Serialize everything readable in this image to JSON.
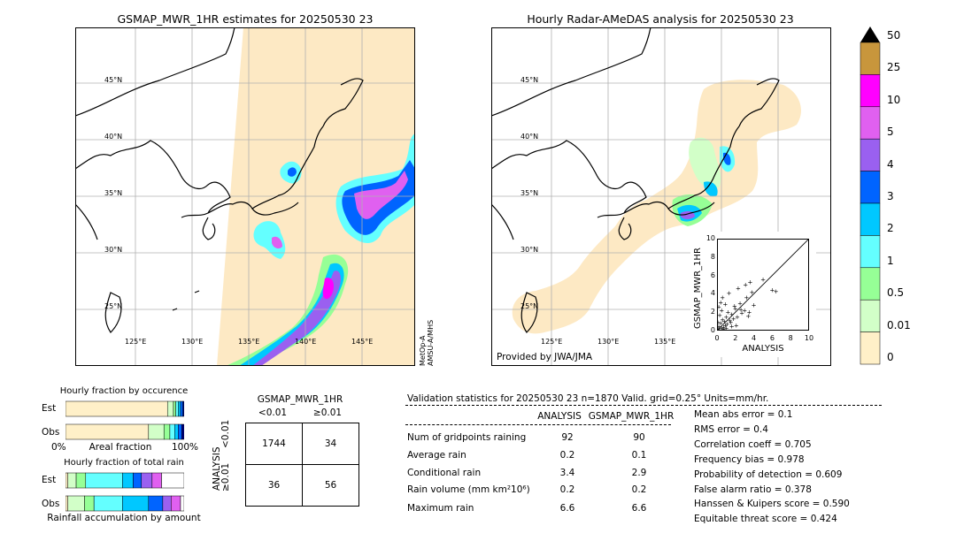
{
  "left_map": {
    "title": "GSMAP_MWR_1HR estimates for 20250530 23",
    "lat_labels": [
      "45°N",
      "40°N",
      "35°N",
      "30°N",
      "25°N"
    ],
    "lon_labels": [
      "125°E",
      "130°E",
      "135°E",
      "140°E",
      "145°E"
    ],
    "sensor_note": "MetOp-A\nAMSU-A/MHS",
    "sensor_line1": "MetOp-A",
    "sensor_line2": "AMSU-A/MHS"
  },
  "right_map": {
    "title": "Hourly Radar-AMeDAS analysis for 20250530 23",
    "lat_labels": [
      "45°N",
      "40°N",
      "35°N",
      "30°N",
      "25°N"
    ],
    "lon_labels": [
      "125°E",
      "130°E",
      "135°E"
    ],
    "credit": "Provided by JWA/JMA"
  },
  "colorbar": {
    "labels": [
      "50",
      "25",
      "10",
      "5",
      "4",
      "3",
      "2",
      "1",
      "0.5",
      "0.01",
      "0"
    ],
    "colors": [
      "#c8963c",
      "#ff00ff",
      "#e060f0",
      "#9a60f0",
      "#0064ff",
      "#00c8ff",
      "#64ffff",
      "#96ff96",
      "#d2ffc8",
      "#fff0c8"
    ]
  },
  "chart_data": [
    {
      "type": "scatter",
      "xlabel": "ANALYSIS",
      "ylabel": "GSMAP_MWR_1HR",
      "xlim": [
        0,
        10
      ],
      "ylim": [
        0,
        10
      ],
      "x_ticks": [
        "0",
        "2",
        "4",
        "6",
        "8",
        "10"
      ],
      "y_ticks": [
        "0",
        "2",
        "4",
        "6",
        "8",
        "10"
      ],
      "points": [
        [
          0.1,
          0.2
        ],
        [
          0.2,
          0.5
        ],
        [
          0.3,
          0.1
        ],
        [
          0.4,
          0.8
        ],
        [
          0.5,
          0.3
        ],
        [
          0.6,
          1.2
        ],
        [
          0.7,
          0.4
        ],
        [
          0.8,
          1.0
        ],
        [
          0.9,
          0.6
        ],
        [
          1.0,
          1.5
        ],
        [
          1.1,
          0.7
        ],
        [
          1.2,
          2.0
        ],
        [
          1.4,
          1.1
        ],
        [
          1.5,
          0.9
        ],
        [
          1.6,
          1.8
        ],
        [
          1.8,
          1.3
        ],
        [
          2.0,
          2.4
        ],
        [
          2.2,
          1.5
        ],
        [
          2.5,
          3.0
        ],
        [
          2.7,
          1.9
        ],
        [
          3.0,
          2.2
        ],
        [
          3.2,
          3.6
        ],
        [
          3.5,
          2.0
        ],
        [
          3.8,
          4.2
        ],
        [
          4.0,
          2.8
        ],
        [
          0.2,
          2.6
        ],
        [
          0.4,
          3.1
        ],
        [
          0.6,
          3.6
        ],
        [
          1.3,
          4.1
        ],
        [
          2.3,
          4.6
        ],
        [
          3.1,
          5.0
        ],
        [
          3.6,
          5.3
        ],
        [
          5.0,
          5.6
        ],
        [
          6.0,
          4.4
        ],
        [
          6.4,
          4.3
        ],
        [
          1.9,
          2.7
        ],
        [
          2.6,
          2.3
        ],
        [
          0.3,
          1.7
        ],
        [
          0.1,
          0.9
        ],
        [
          0.5,
          2.2
        ],
        [
          0.7,
          0.2
        ],
        [
          1.0,
          0.3
        ],
        [
          1.6,
          0.5
        ],
        [
          2.1,
          0.6
        ],
        [
          0.9,
          2.9
        ],
        [
          3.4,
          1.6
        ]
      ]
    },
    {
      "type": "bar",
      "title": "Hourly fraction by occurence",
      "categories": [
        "Est",
        "Obs"
      ],
      "xlabel": "Areal fraction",
      "x_tick_labels": [
        "0%",
        "100%"
      ],
      "series": [
        {
          "values": [
            0.86,
            0.7
          ]
        },
        {
          "values": [
            0.05,
            0.13
          ]
        },
        {
          "values": [
            0.02,
            0.05
          ]
        },
        {
          "values": [
            0.02,
            0.04
          ]
        },
        {
          "values": [
            0.02,
            0.03
          ]
        },
        {
          "values": [
            0.02,
            0.03
          ]
        },
        {
          "values": [
            0.01,
            0.02
          ]
        }
      ],
      "colors": [
        "#fff0c8",
        "#d2ffc8",
        "#96ff96",
        "#64ffff",
        "#00c8ff",
        "#0064ff",
        "#000080"
      ]
    },
    {
      "type": "bar",
      "title": "Hourly fraction of total rain",
      "categories": [
        "Est",
        "Obs"
      ],
      "xlabel": "Rainfall accumulation by amount",
      "series": [
        {
          "values": [
            0.02,
            0.02
          ]
        },
        {
          "values": [
            0.07,
            0.14
          ]
        },
        {
          "values": [
            0.08,
            0.08
          ]
        },
        {
          "values": [
            0.31,
            0.24
          ]
        },
        {
          "values": [
            0.09,
            0.22
          ]
        },
        {
          "values": [
            0.07,
            0.12
          ]
        },
        {
          "values": [
            0.09,
            0.07
          ]
        },
        {
          "values": [
            0.08,
            0.08
          ]
        },
        {
          "values": [
            0.19,
            0.03
          ]
        }
      ],
      "colors": [
        "#fff0c8",
        "#d2ffc8",
        "#96ff96",
        "#64ffff",
        "#00c8ff",
        "#0064ff",
        "#9a60f0",
        "#e060f0",
        "#ffffff"
      ]
    },
    {
      "type": "table",
      "title": "GSMAP_MWR_1HR",
      "col_headers": [
        "<0.01",
        "≥0.01"
      ],
      "row_axis_label": "ANALYSIS",
      "row_headers": [
        "<0.01",
        "≥0.01"
      ],
      "cells": [
        [
          "1744",
          "34"
        ],
        [
          "36",
          "56"
        ]
      ]
    },
    {
      "type": "table",
      "title": "Validation statistics for 20250530 23  n=1870 Valid. grid=0.25° Units=mm/hr.",
      "col_headers": [
        "ANALYSIS",
        "GSMAP_MWR_1HR"
      ],
      "rows": [
        {
          "label": "Num of gridpoints raining",
          "analysis": "92",
          "gsmap": "90"
        },
        {
          "label": "Average rain",
          "analysis": "0.2",
          "gsmap": "0.1"
        },
        {
          "label": "Conditional rain",
          "analysis": "3.4",
          "gsmap": "2.9"
        },
        {
          "label": "Rain volume (mm km²10⁶)",
          "analysis": "0.2",
          "gsmap": "0.2"
        },
        {
          "label": "Maximum rain",
          "analysis": "6.6",
          "gsmap": "6.6"
        }
      ]
    }
  ],
  "scores": [
    "Mean abs error =    0.1",
    "RMS error =    0.4",
    "Correlation coeff =  0.705",
    "Frequency bias =  0.978",
    "Probability of detection =  0.609",
    "False alarm ratio =  0.378",
    "Hanssen & Kuipers score =  0.590",
    "Equitable threat score =  0.424"
  ]
}
